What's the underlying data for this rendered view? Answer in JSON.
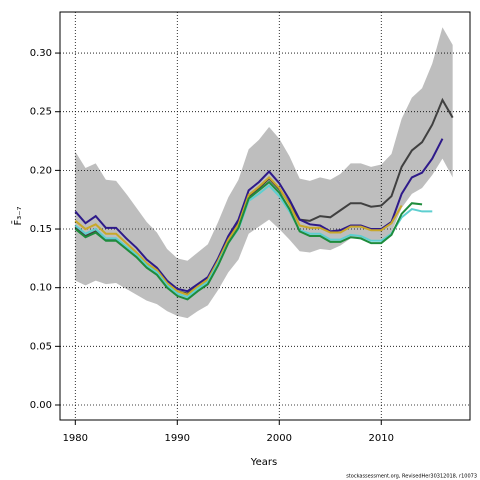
{
  "chart_data": {
    "type": "line",
    "xlabel": "Years",
    "ylabel": "F̄₃₋₇",
    "footnote": "stockassessment.org, RevisedHer30312018, r10073",
    "x": [
      1980,
      1981,
      1982,
      1983,
      1984,
      1985,
      1986,
      1987,
      1988,
      1989,
      1990,
      1991,
      1992,
      1993,
      1994,
      1995,
      1996,
      1997,
      1998,
      1999,
      2000,
      2001,
      2002,
      2003,
      2004,
      2005,
      2006,
      2007,
      2008,
      2009,
      2010,
      2011,
      2012,
      2013,
      2014,
      2015,
      2016,
      2017
    ],
    "band": {
      "color": "#bebebe",
      "upper": [
        0.216,
        0.202,
        0.206,
        0.192,
        0.191,
        0.18,
        0.168,
        0.156,
        0.147,
        0.133,
        0.125,
        0.123,
        0.13,
        0.137,
        0.156,
        0.177,
        0.192,
        0.218,
        0.226,
        0.237,
        0.227,
        0.212,
        0.193,
        0.191,
        0.194,
        0.192,
        0.197,
        0.206,
        0.206,
        0.203,
        0.205,
        0.214,
        0.244,
        0.262,
        0.27,
        0.291,
        0.322,
        0.307
      ],
      "lower": [
        0.106,
        0.102,
        0.106,
        0.103,
        0.104,
        0.099,
        0.094,
        0.089,
        0.086,
        0.08,
        0.076,
        0.074,
        0.08,
        0.085,
        0.098,
        0.113,
        0.124,
        0.146,
        0.152,
        0.158,
        0.15,
        0.141,
        0.131,
        0.13,
        0.133,
        0.132,
        0.136,
        0.142,
        0.143,
        0.14,
        0.14,
        0.147,
        0.168,
        0.18,
        0.185,
        0.196,
        0.21,
        0.194
      ]
    },
    "series": [
      {
        "color": "#404040",
        "values": [
          0.152,
          0.144,
          0.148,
          0.141,
          0.141,
          0.134,
          0.127,
          0.119,
          0.113,
          0.103,
          0.097,
          0.095,
          0.101,
          0.107,
          0.123,
          0.141,
          0.155,
          0.178,
          0.185,
          0.193,
          0.184,
          0.172,
          0.158,
          0.157,
          0.161,
          0.16,
          0.166,
          0.172,
          0.172,
          0.169,
          0.17,
          0.178,
          0.203,
          0.217,
          0.224,
          0.239,
          0.26,
          0.245
        ]
      },
      {
        "color": "#2e1a8a",
        "values": [
          0.165,
          0.155,
          0.161,
          0.151,
          0.151,
          0.142,
          0.134,
          0.124,
          0.117,
          0.106,
          0.099,
          0.097,
          0.103,
          0.109,
          0.125,
          0.144,
          0.158,
          0.183,
          0.19,
          0.199,
          0.189,
          0.175,
          0.158,
          0.154,
          0.153,
          0.148,
          0.149,
          0.153,
          0.153,
          0.15,
          0.15,
          0.156,
          0.18,
          0.194,
          0.198,
          0.21,
          0.227,
          null
        ]
      },
      {
        "color": "#c8a82a",
        "values": [
          0.157,
          0.15,
          0.154,
          0.146,
          0.146,
          0.138,
          0.13,
          0.121,
          0.115,
          0.104,
          0.097,
          0.094,
          0.101,
          0.107,
          0.123,
          0.141,
          0.154,
          0.179,
          0.186,
          0.194,
          0.185,
          0.171,
          0.153,
          0.151,
          0.151,
          0.147,
          0.147,
          0.152,
          0.152,
          0.149,
          0.149,
          0.155,
          0.17,
          null,
          null,
          null,
          null,
          null
        ]
      },
      {
        "color": "#5ecfd0",
        "values": [
          0.153,
          0.146,
          0.15,
          0.142,
          0.142,
          0.135,
          0.128,
          0.119,
          0.113,
          0.102,
          0.095,
          0.092,
          0.099,
          0.105,
          0.121,
          0.138,
          0.15,
          0.174,
          0.18,
          0.187,
          0.178,
          0.165,
          0.149,
          0.146,
          0.146,
          0.141,
          0.141,
          0.145,
          0.144,
          0.14,
          0.14,
          0.146,
          0.16,
          0.167,
          0.165,
          0.165,
          null,
          null
        ]
      },
      {
        "color": "#1e8c3c",
        "values": [
          0.15,
          0.143,
          0.147,
          0.14,
          0.14,
          0.133,
          0.126,
          0.117,
          0.111,
          0.1,
          0.093,
          0.09,
          0.097,
          0.103,
          0.119,
          0.138,
          0.151,
          0.176,
          0.183,
          0.19,
          0.181,
          0.167,
          0.148,
          0.144,
          0.144,
          0.139,
          0.139,
          0.143,
          0.142,
          0.138,
          0.138,
          0.145,
          0.163,
          0.172,
          0.171,
          null,
          null,
          null
        ]
      }
    ],
    "xlim": [
      1978.5,
      2018.7
    ],
    "ylim": [
      -0.0128,
      0.335
    ],
    "xticks": [
      1980,
      1990,
      2000,
      2010
    ],
    "yticks": [
      {
        "value": 0,
        "label": "0.00"
      },
      {
        "value": 0.05,
        "label": "0.05"
      },
      {
        "value": 0.1,
        "label": "0.10"
      },
      {
        "value": 0.15,
        "label": "0.15"
      },
      {
        "value": 0.2,
        "label": "0.20"
      },
      {
        "value": 0.25,
        "label": "0.25"
      },
      {
        "value": 0.3,
        "label": "0.30"
      }
    ],
    "grid": true
  }
}
